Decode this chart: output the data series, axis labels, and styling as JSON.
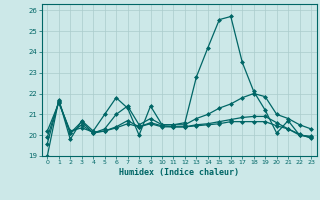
{
  "title": "",
  "xlabel": "Humidex (Indice chaleur)",
  "ylabel": "",
  "xlim": [
    -0.5,
    23.5
  ],
  "ylim": [
    19,
    26.3
  ],
  "yticks": [
    19,
    20,
    21,
    22,
    23,
    24,
    25,
    26
  ],
  "xticks": [
    0,
    1,
    2,
    3,
    4,
    5,
    6,
    7,
    8,
    9,
    10,
    11,
    12,
    13,
    14,
    15,
    16,
    17,
    18,
    19,
    20,
    21,
    22,
    23
  ],
  "background_color": "#cce8e8",
  "grid_color": "#aacccc",
  "line_color": "#006666",
  "series": [
    {
      "x": [
        0,
        1,
        2,
        3,
        4,
        5,
        6,
        7,
        8,
        9,
        10,
        11,
        12,
        13,
        14,
        15,
        16,
        17,
        18,
        19,
        20,
        21,
        22,
        23
      ],
      "y": [
        19.0,
        21.7,
        19.8,
        20.7,
        20.2,
        21.0,
        21.8,
        21.3,
        20.0,
        21.4,
        20.5,
        20.5,
        20.6,
        22.8,
        24.2,
        25.55,
        25.7,
        23.5,
        22.1,
        21.2,
        20.1,
        20.7,
        20.0,
        19.9
      ]
    },
    {
      "x": [
        0,
        1,
        2,
        3,
        4,
        5,
        6,
        7,
        8,
        9,
        10,
        11,
        12,
        13,
        14,
        15,
        16,
        17,
        18,
        19,
        20,
        21,
        22,
        23
      ],
      "y": [
        19.6,
        21.65,
        20.1,
        20.65,
        20.1,
        20.3,
        21.0,
        21.4,
        20.5,
        20.8,
        20.5,
        20.5,
        20.5,
        20.8,
        21.0,
        21.3,
        21.5,
        21.8,
        22.0,
        21.85,
        21.0,
        20.8,
        20.5,
        20.3
      ]
    },
    {
      "x": [
        0,
        1,
        2,
        3,
        4,
        5,
        6,
        7,
        8,
        9,
        10,
        11,
        12,
        13,
        14,
        15,
        16,
        17,
        18,
        19,
        20,
        21,
        22,
        23
      ],
      "y": [
        19.9,
        21.6,
        20.1,
        20.5,
        20.1,
        20.2,
        20.4,
        20.7,
        20.4,
        20.6,
        20.45,
        20.4,
        20.4,
        20.5,
        20.55,
        20.65,
        20.75,
        20.85,
        20.9,
        20.9,
        20.6,
        20.3,
        20.0,
        19.95
      ]
    },
    {
      "x": [
        0,
        1,
        2,
        3,
        4,
        5,
        6,
        7,
        8,
        9,
        10,
        11,
        12,
        13,
        14,
        15,
        16,
        17,
        18,
        19,
        20,
        21,
        22,
        23
      ],
      "y": [
        20.2,
        21.55,
        20.2,
        20.35,
        20.15,
        20.2,
        20.35,
        20.55,
        20.4,
        20.55,
        20.4,
        20.4,
        20.4,
        20.45,
        20.5,
        20.55,
        20.65,
        20.65,
        20.65,
        20.65,
        20.45,
        20.3,
        20.05,
        19.85
      ]
    }
  ]
}
